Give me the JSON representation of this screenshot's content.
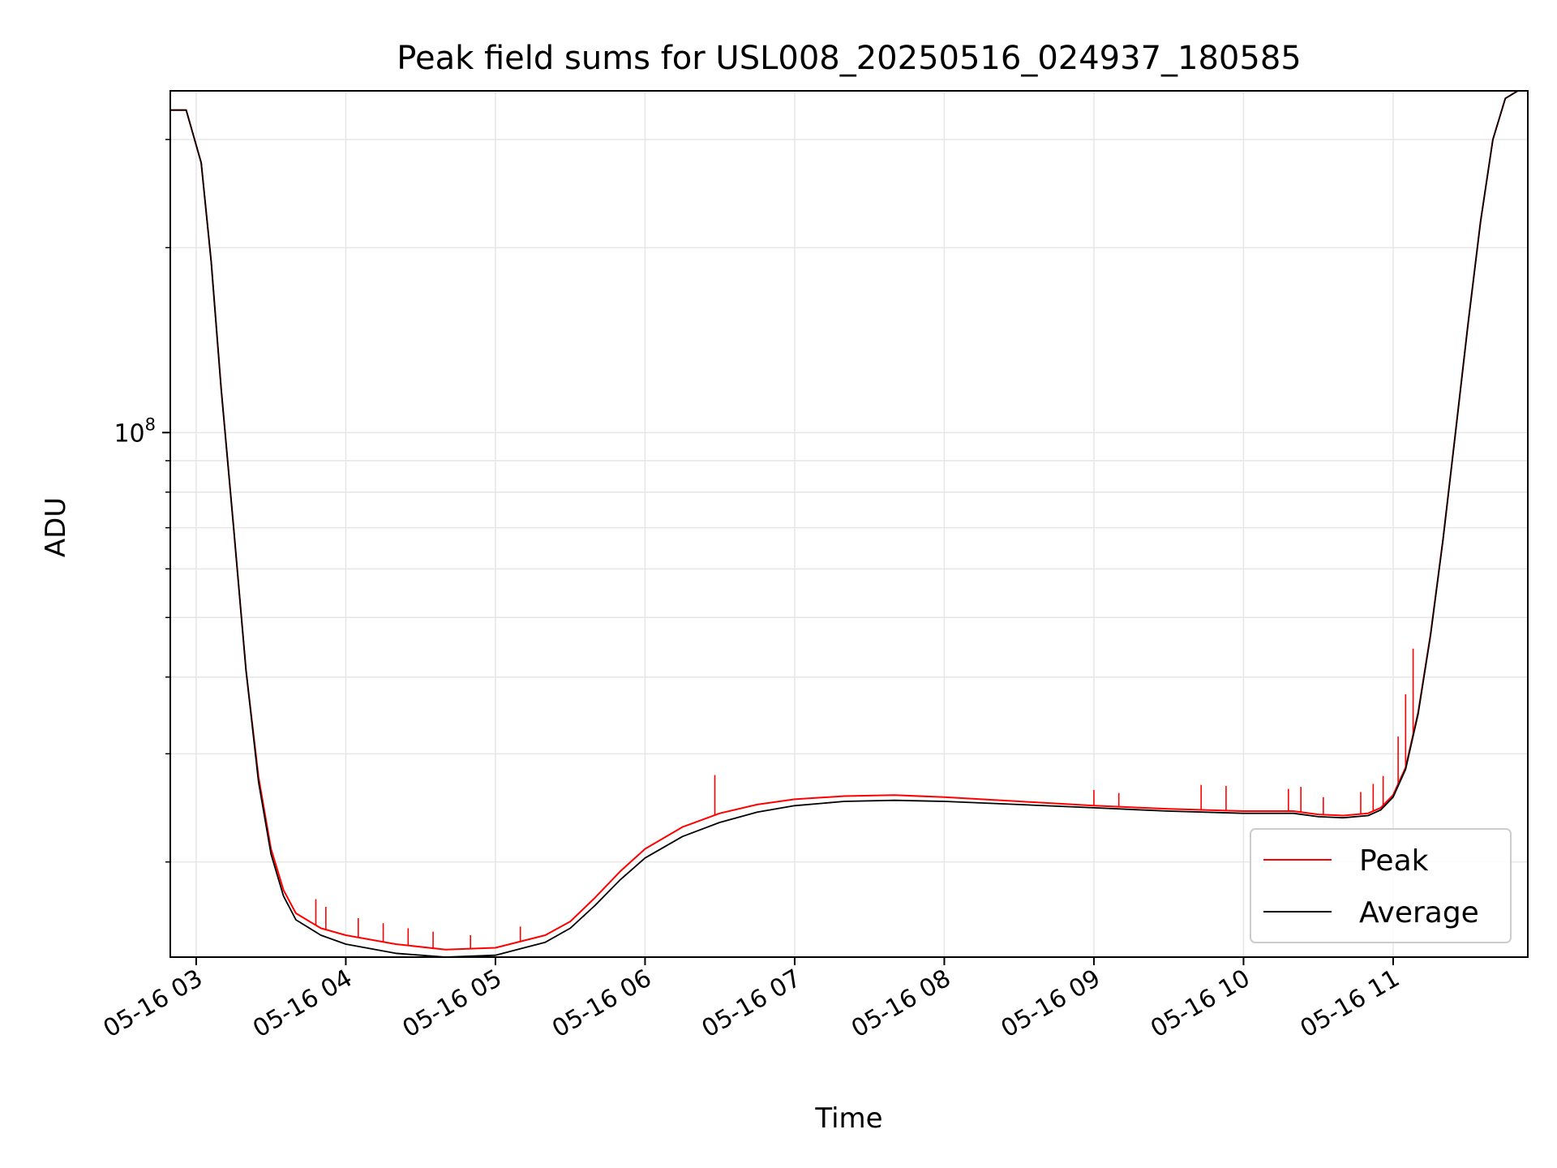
{
  "chart_data": {
    "type": "line",
    "title": "Peak field sums for USL008_20250516_024937_180585",
    "xlabel": "Time",
    "ylabel": "ADU",
    "y_scale": "log",
    "xlim": [
      "2025-05-16 02:49:37",
      "2025-05-16 11:54:00"
    ],
    "ylim": [
      14000000,
      360000000
    ],
    "x_ticks": [
      "05-16 03",
      "05-16 04",
      "05-16 05",
      "05-16 06",
      "05-16 07",
      "05-16 08",
      "05-16 09",
      "05-16 10",
      "05-16 11"
    ],
    "x_tick_times": [
      "2025-05-16 03:00",
      "2025-05-16 04:00",
      "2025-05-16 05:00",
      "2025-05-16 06:00",
      "2025-05-16 07:00",
      "2025-05-16 08:00",
      "2025-05-16 09:00",
      "2025-05-16 10:00",
      "2025-05-16 11:00"
    ],
    "y_major_ticks": [
      {
        "value": 100000000,
        "base": "10",
        "exp": "8"
      }
    ],
    "y_minor_ticks": [
      20000000,
      30000000,
      40000000,
      50000000,
      60000000,
      70000000,
      80000000,
      90000000,
      200000000,
      300000000
    ],
    "grid": true,
    "legend_position": "lower right",
    "series": [
      {
        "name": "Peak",
        "color": "#ff0000",
        "x": [
          "2025-05-16 02:49:37",
          "2025-05-16 02:56",
          "2025-05-16 03:02",
          "2025-05-16 03:06",
          "2025-05-16 03:10",
          "2025-05-16 03:15",
          "2025-05-16 03:20",
          "2025-05-16 03:25",
          "2025-05-16 03:30",
          "2025-05-16 03:35",
          "2025-05-16 03:40",
          "2025-05-16 03:50",
          "2025-05-16 04:00",
          "2025-05-16 04:20",
          "2025-05-16 04:40",
          "2025-05-16 05:00",
          "2025-05-16 05:20",
          "2025-05-16 05:30",
          "2025-05-16 05:40",
          "2025-05-16 05:50",
          "2025-05-16 06:00",
          "2025-05-16 06:15",
          "2025-05-16 06:30",
          "2025-05-16 06:45",
          "2025-05-16 07:00",
          "2025-05-16 07:20",
          "2025-05-16 07:40",
          "2025-05-16 08:00",
          "2025-05-16 08:30",
          "2025-05-16 09:00",
          "2025-05-16 09:30",
          "2025-05-16 10:00",
          "2025-05-16 10:20",
          "2025-05-16 10:30",
          "2025-05-16 10:40",
          "2025-05-16 10:50",
          "2025-05-16 10:55",
          "2025-05-16 11:00",
          "2025-05-16 11:05",
          "2025-05-16 11:10",
          "2025-05-16 11:15",
          "2025-05-16 11:20",
          "2025-05-16 11:25",
          "2025-05-16 11:30",
          "2025-05-16 11:35",
          "2025-05-16 11:40",
          "2025-05-16 11:45",
          "2025-05-16 11:50",
          "2025-05-16 11:54"
        ],
        "y": [
          335000000,
          335000000,
          275000000,
          190000000,
          118000000,
          70000000,
          41000000,
          27500000,
          21000000,
          18000000,
          16500000,
          15600000,
          15200000,
          14700000,
          14400000,
          14500000,
          15200000,
          16000000,
          17500000,
          19300000,
          21000000,
          22800000,
          24000000,
          24800000,
          25300000,
          25600000,
          25700000,
          25500000,
          25100000,
          24700000,
          24400000,
          24200000,
          24200000,
          23900000,
          23800000,
          24000000,
          24500000,
          25700000,
          28500000,
          35000000,
          47000000,
          67000000,
          100000000,
          150000000,
          220000000,
          300000000,
          350000000,
          360000000,
          360000000
        ],
        "spikes": [
          {
            "x": "2025-05-16 03:48",
            "y": 17400000
          },
          {
            "x": "2025-05-16 03:52",
            "y": 16900000
          },
          {
            "x": "2025-05-16 04:05",
            "y": 16200000
          },
          {
            "x": "2025-05-16 04:15",
            "y": 15900000
          },
          {
            "x": "2025-05-16 04:25",
            "y": 15600000
          },
          {
            "x": "2025-05-16 04:35",
            "y": 15400000
          },
          {
            "x": "2025-05-16 04:50",
            "y": 15200000
          },
          {
            "x": "2025-05-16 05:10",
            "y": 15700000
          },
          {
            "x": "2025-05-16 06:28",
            "y": 27700000
          },
          {
            "x": "2025-05-16 09:00",
            "y": 26200000
          },
          {
            "x": "2025-05-16 09:10",
            "y": 25900000
          },
          {
            "x": "2025-05-16 09:43",
            "y": 26700000
          },
          {
            "x": "2025-05-16 09:53",
            "y": 26600000
          },
          {
            "x": "2025-05-16 10:18",
            "y": 26300000
          },
          {
            "x": "2025-05-16 10:23",
            "y": 26500000
          },
          {
            "x": "2025-05-16 10:32",
            "y": 25500000
          },
          {
            "x": "2025-05-16 10:47",
            "y": 26000000
          },
          {
            "x": "2025-05-16 10:52",
            "y": 26800000
          },
          {
            "x": "2025-05-16 10:56",
            "y": 27600000
          },
          {
            "x": "2025-05-16 11:02",
            "y": 32000000
          },
          {
            "x": "2025-05-16 11:05",
            "y": 37500000
          },
          {
            "x": "2025-05-16 11:08",
            "y": 44500000
          }
        ]
      },
      {
        "name": "Average",
        "color": "#000000",
        "x": [
          "2025-05-16 02:49:37",
          "2025-05-16 02:56",
          "2025-05-16 03:02",
          "2025-05-16 03:06",
          "2025-05-16 03:10",
          "2025-05-16 03:15",
          "2025-05-16 03:20",
          "2025-05-16 03:25",
          "2025-05-16 03:30",
          "2025-05-16 03:35",
          "2025-05-16 03:40",
          "2025-05-16 03:50",
          "2025-05-16 04:00",
          "2025-05-16 04:20",
          "2025-05-16 04:40",
          "2025-05-16 05:00",
          "2025-05-16 05:20",
          "2025-05-16 05:30",
          "2025-05-16 05:40",
          "2025-05-16 05:50",
          "2025-05-16 06:00",
          "2025-05-16 06:15",
          "2025-05-16 06:30",
          "2025-05-16 06:45",
          "2025-05-16 07:00",
          "2025-05-16 07:20",
          "2025-05-16 07:40",
          "2025-05-16 08:00",
          "2025-05-16 08:30",
          "2025-05-16 09:00",
          "2025-05-16 09:30",
          "2025-05-16 10:00",
          "2025-05-16 10:20",
          "2025-05-16 10:30",
          "2025-05-16 10:40",
          "2025-05-16 10:50",
          "2025-05-16 10:55",
          "2025-05-16 11:00",
          "2025-05-16 11:05",
          "2025-05-16 11:10",
          "2025-05-16 11:15",
          "2025-05-16 11:20",
          "2025-05-16 11:25",
          "2025-05-16 11:30",
          "2025-05-16 11:35",
          "2025-05-16 11:40",
          "2025-05-16 11:45",
          "2025-05-16 11:50",
          "2025-05-16 11:54"
        ],
        "y": [
          335000000,
          335000000,
          275000000,
          190000000,
          118000000,
          70000000,
          41000000,
          27000000,
          20600000,
          17600000,
          16100000,
          15200000,
          14700000,
          14200000,
          14000000,
          14100000,
          14800000,
          15600000,
          17000000,
          18700000,
          20300000,
          22000000,
          23200000,
          24100000,
          24700000,
          25100000,
          25200000,
          25100000,
          24800000,
          24500000,
          24200000,
          24000000,
          24000000,
          23700000,
          23600000,
          23800000,
          24300000,
          25500000,
          28300000,
          34800000,
          46800000,
          66800000,
          99800000,
          149800000,
          219800000,
          299800000,
          350000000,
          360000000,
          360000000
        ]
      }
    ],
    "legend": [
      {
        "label": "Peak",
        "color": "#ff0000"
      },
      {
        "label": "Average",
        "color": "#000000"
      }
    ]
  }
}
